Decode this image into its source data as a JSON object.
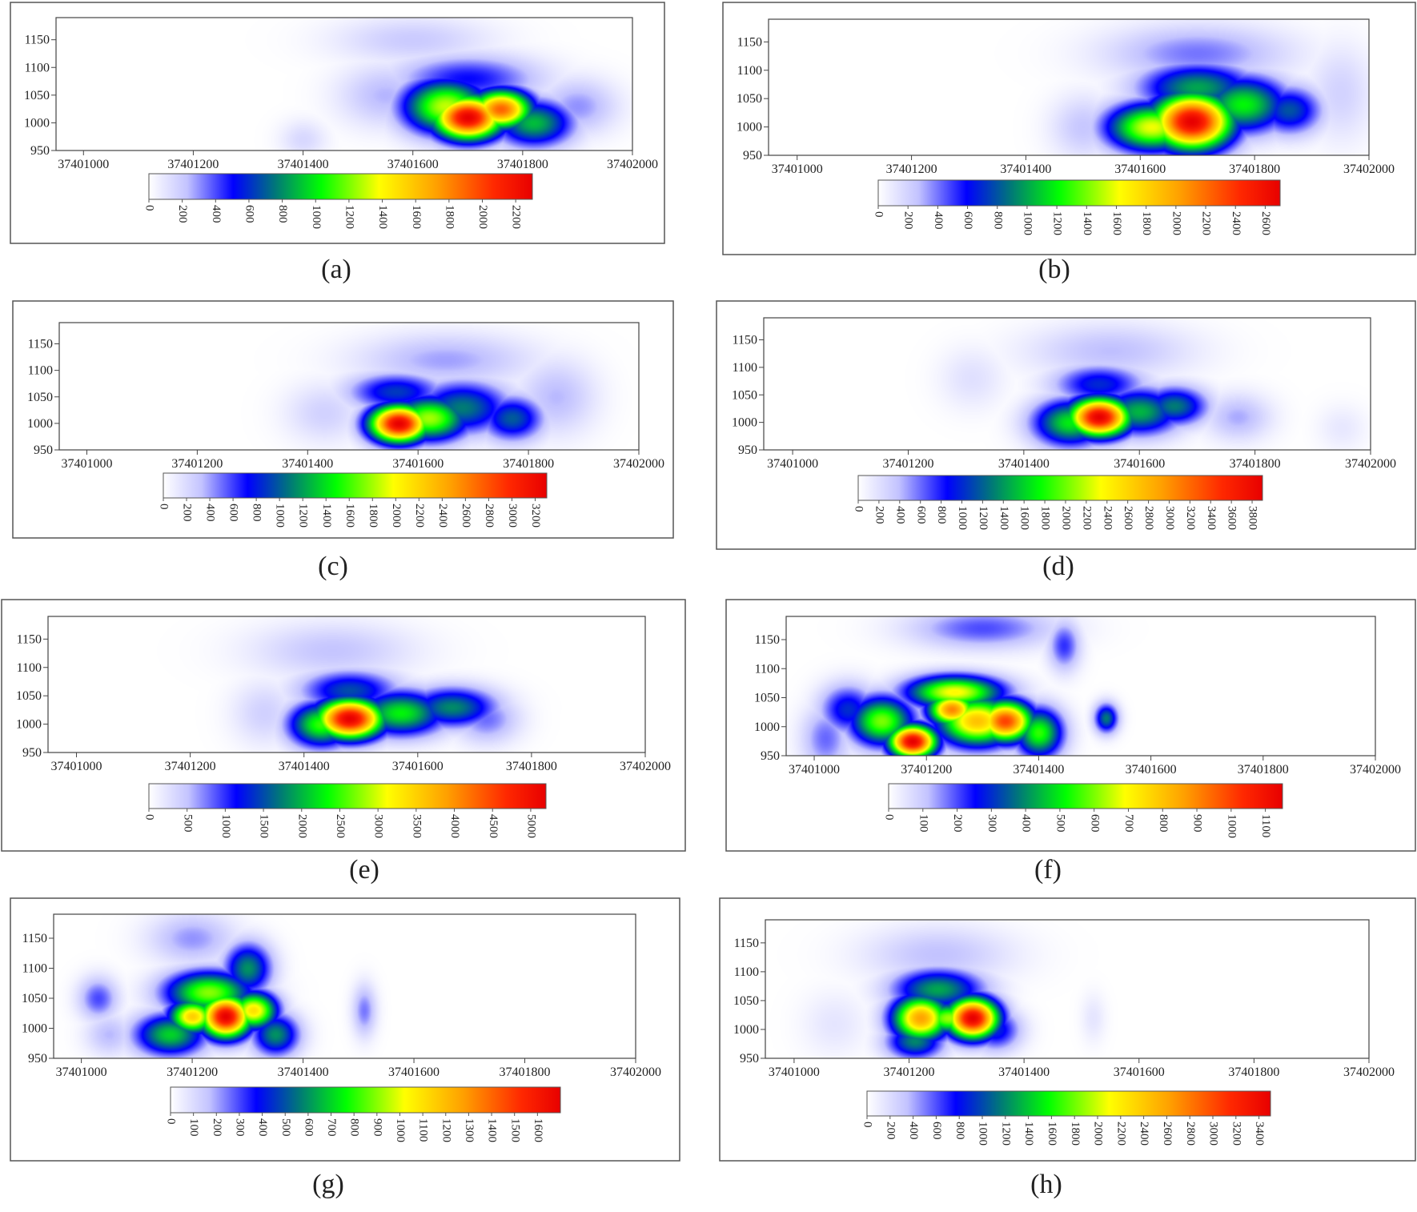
{
  "chart_data": [
    {
      "type": "heatmap",
      "panel_label": "(a)",
      "x_ticks": [
        "37401000",
        "37401200",
        "37401400",
        "37401600",
        "37401800",
        "37402000"
      ],
      "y_ticks": [
        "950",
        "1000",
        "1050",
        "1100",
        "1150"
      ],
      "xlim": [
        37400950,
        37402000
      ],
      "ylim": [
        950,
        1190
      ],
      "colorbar_ticks": [
        "0",
        "200",
        "400",
        "600",
        "800",
        "1000",
        "1200",
        "1400",
        "1600",
        "1800",
        "2000",
        "2200"
      ],
      "colorbar_range": [
        0,
        2300
      ],
      "hotspots": [
        {
          "x": 37401700,
          "y": 1010,
          "value": 2300,
          "sx": 45,
          "sy": 28
        },
        {
          "x": 37401760,
          "y": 1025,
          "value": 1900,
          "sx": 40,
          "sy": 25
        },
        {
          "x": 37401660,
          "y": 1030,
          "value": 1300,
          "sx": 55,
          "sy": 35
        },
        {
          "x": 37401820,
          "y": 1000,
          "value": 900,
          "sx": 50,
          "sy": 30
        },
        {
          "x": 37401700,
          "y": 1080,
          "value": 500,
          "sx": 90,
          "sy": 30
        },
        {
          "x": 37401900,
          "y": 1030,
          "value": 300,
          "sx": 50,
          "sy": 35
        },
        {
          "x": 37401550,
          "y": 1050,
          "value": 250,
          "sx": 60,
          "sy": 40
        },
        {
          "x": 37401400,
          "y": 970,
          "value": 150,
          "sx": 30,
          "sy": 25
        },
        {
          "x": 37401600,
          "y": 1150,
          "value": 200,
          "sx": 100,
          "sy": 30
        }
      ]
    },
    {
      "type": "heatmap",
      "panel_label": "(b)",
      "x_ticks": [
        "37401000",
        "37401200",
        "37401400",
        "37401600",
        "37401800",
        "37402000"
      ],
      "y_ticks": [
        "950",
        "1000",
        "1050",
        "1100",
        "1150"
      ],
      "xlim": [
        37400950,
        37402000
      ],
      "ylim": [
        950,
        1190
      ],
      "colorbar_ticks": [
        "0",
        "200",
        "400",
        "600",
        "800",
        "1000",
        "1200",
        "1400",
        "1600",
        "1800",
        "2000",
        "2200",
        "2400",
        "2600"
      ],
      "colorbar_range": [
        0,
        2700
      ],
      "hotspots": [
        {
          "x": 37401690,
          "y": 1010,
          "value": 2700,
          "sx": 50,
          "sy": 35
        },
        {
          "x": 37401620,
          "y": 1000,
          "value": 1600,
          "sx": 55,
          "sy": 30
        },
        {
          "x": 37401780,
          "y": 1040,
          "value": 1200,
          "sx": 55,
          "sy": 35
        },
        {
          "x": 37401700,
          "y": 1070,
          "value": 1000,
          "sx": 70,
          "sy": 30
        },
        {
          "x": 37401860,
          "y": 1030,
          "value": 800,
          "sx": 40,
          "sy": 30
        },
        {
          "x": 37401700,
          "y": 1130,
          "value": 400,
          "sx": 110,
          "sy": 35
        },
        {
          "x": 37401500,
          "y": 1000,
          "value": 250,
          "sx": 40,
          "sy": 40
        },
        {
          "x": 37401950,
          "y": 1060,
          "value": 200,
          "sx": 40,
          "sy": 60
        }
      ]
    },
    {
      "type": "heatmap",
      "panel_label": "(c)",
      "x_ticks": [
        "37401000",
        "37401200",
        "37401400",
        "37401600",
        "37401800",
        "37402000"
      ],
      "y_ticks": [
        "950",
        "1000",
        "1050",
        "1100",
        "1150"
      ],
      "xlim": [
        37400950,
        37402000
      ],
      "ylim": [
        950,
        1190
      ],
      "colorbar_ticks": [
        "0",
        "200",
        "400",
        "600",
        "800",
        "1000",
        "1200",
        "1400",
        "1600",
        "1800",
        "2000",
        "2200",
        "2400",
        "2600",
        "2800",
        "3000",
        "3200"
      ],
      "colorbar_range": [
        0,
        3300
      ],
      "hotspots": [
        {
          "x": 37401565,
          "y": 1000,
          "value": 3300,
          "sx": 38,
          "sy": 25
        },
        {
          "x": 37401620,
          "y": 1010,
          "value": 1800,
          "sx": 50,
          "sy": 30
        },
        {
          "x": 37401680,
          "y": 1030,
          "value": 1100,
          "sx": 60,
          "sy": 35
        },
        {
          "x": 37401770,
          "y": 1010,
          "value": 1000,
          "sx": 40,
          "sy": 30
        },
        {
          "x": 37401560,
          "y": 1060,
          "value": 900,
          "sx": 60,
          "sy": 25
        },
        {
          "x": 37401850,
          "y": 1050,
          "value": 350,
          "sx": 50,
          "sy": 50
        },
        {
          "x": 37401650,
          "y": 1120,
          "value": 400,
          "sx": 110,
          "sy": 35
        },
        {
          "x": 37401430,
          "y": 1020,
          "value": 250,
          "sx": 50,
          "sy": 40
        }
      ]
    },
    {
      "type": "heatmap",
      "panel_label": "(d)",
      "x_ticks": [
        "37401000",
        "37401200",
        "37401400",
        "37401600",
        "37401800",
        "37402000"
      ],
      "y_ticks": [
        "950",
        "1000",
        "1050",
        "1100",
        "1150"
      ],
      "xlim": [
        37400950,
        37402000
      ],
      "ylim": [
        950,
        1190
      ],
      "colorbar_ticks": [
        "0",
        "200",
        "400",
        "600",
        "800",
        "1000",
        "1200",
        "1400",
        "1600",
        "1800",
        "2000",
        "2200",
        "2400",
        "2600",
        "2800",
        "3000",
        "3200",
        "3400",
        "3600",
        "3800"
      ],
      "colorbar_range": [
        0,
        3900
      ],
      "hotspots": [
        {
          "x": 37401530,
          "y": 1010,
          "value": 3900,
          "sx": 38,
          "sy": 25
        },
        {
          "x": 37401480,
          "y": 1000,
          "value": 1700,
          "sx": 45,
          "sy": 30
        },
        {
          "x": 37401600,
          "y": 1020,
          "value": 1500,
          "sx": 50,
          "sy": 30
        },
        {
          "x": 37401660,
          "y": 1030,
          "value": 1300,
          "sx": 40,
          "sy": 25
        },
        {
          "x": 37401530,
          "y": 1070,
          "value": 1000,
          "sx": 55,
          "sy": 25
        },
        {
          "x": 37401770,
          "y": 1010,
          "value": 450,
          "sx": 40,
          "sy": 30
        },
        {
          "x": 37401550,
          "y": 1130,
          "value": 400,
          "sx": 100,
          "sy": 35
        },
        {
          "x": 37401310,
          "y": 1080,
          "value": 200,
          "sx": 40,
          "sy": 40
        },
        {
          "x": 37401950,
          "y": 990,
          "value": 150,
          "sx": 30,
          "sy": 30
        }
      ]
    },
    {
      "type": "heatmap",
      "panel_label": "(e)",
      "x_ticks": [
        "37401000",
        "37401200",
        "37401400",
        "37401600",
        "37401800",
        "37402000"
      ],
      "y_ticks": [
        "950",
        "1000",
        "1050",
        "1100",
        "1150"
      ],
      "xlim": [
        37400950,
        37402000
      ],
      "ylim": [
        950,
        1190
      ],
      "colorbar_ticks": [
        "0",
        "500",
        "1000",
        "1500",
        "2000",
        "2500",
        "3000",
        "3500",
        "4000",
        "4500",
        "5000"
      ],
      "colorbar_range": [
        0,
        5200
      ],
      "hotspots": [
        {
          "x": 37401480,
          "y": 1010,
          "value": 5200,
          "sx": 42,
          "sy": 25
        },
        {
          "x": 37401430,
          "y": 1000,
          "value": 2500,
          "sx": 40,
          "sy": 28
        },
        {
          "x": 37401570,
          "y": 1020,
          "value": 2300,
          "sx": 55,
          "sy": 28
        },
        {
          "x": 37401660,
          "y": 1030,
          "value": 1800,
          "sx": 55,
          "sy": 25
        },
        {
          "x": 37401480,
          "y": 1060,
          "value": 1500,
          "sx": 60,
          "sy": 25
        },
        {
          "x": 37401450,
          "y": 1130,
          "value": 500,
          "sx": 100,
          "sy": 35
        },
        {
          "x": 37401330,
          "y": 1020,
          "value": 400,
          "sx": 40,
          "sy": 40
        },
        {
          "x": 37401720,
          "y": 1010,
          "value": 800,
          "sx": 40,
          "sy": 30
        }
      ]
    },
    {
      "type": "heatmap",
      "panel_label": "(f)",
      "x_ticks": [
        "37401000",
        "37401200",
        "37401400",
        "37401600",
        "37401800",
        "37402000"
      ],
      "y_ticks": [
        "950",
        "1000",
        "1050",
        "1100",
        "1150"
      ],
      "xlim": [
        37400950,
        37402000
      ],
      "ylim": [
        950,
        1190
      ],
      "colorbar_ticks": [
        "0",
        "100",
        "200",
        "300",
        "400",
        "500",
        "600",
        "700",
        "800",
        "900",
        "1000",
        "1100"
      ],
      "colorbar_range": [
        0,
        1150
      ],
      "hotspots": [
        {
          "x": 37401175,
          "y": 975,
          "value": 1150,
          "sx": 30,
          "sy": 20
        },
        {
          "x": 37401340,
          "y": 1010,
          "value": 1000,
          "sx": 35,
          "sy": 25
        },
        {
          "x": 37401245,
          "y": 1030,
          "value": 900,
          "sx": 30,
          "sy": 20
        },
        {
          "x": 37401290,
          "y": 1010,
          "value": 800,
          "sx": 50,
          "sy": 30
        },
        {
          "x": 37401120,
          "y": 1010,
          "value": 600,
          "sx": 40,
          "sy": 30
        },
        {
          "x": 37401250,
          "y": 1060,
          "value": 700,
          "sx": 60,
          "sy": 20
        },
        {
          "x": 37401060,
          "y": 1030,
          "value": 300,
          "sx": 35,
          "sy": 30
        },
        {
          "x": 37401400,
          "y": 990,
          "value": 550,
          "sx": 30,
          "sy": 30
        },
        {
          "x": 37401520,
          "y": 1015,
          "value": 380,
          "sx": 15,
          "sy": 18
        },
        {
          "x": 37401445,
          "y": 1140,
          "value": 220,
          "sx": 20,
          "sy": 30
        },
        {
          "x": 37401300,
          "y": 1170,
          "value": 200,
          "sx": 90,
          "sy": 25
        },
        {
          "x": 37401020,
          "y": 980,
          "value": 180,
          "sx": 30,
          "sy": 40
        }
      ]
    },
    {
      "type": "heatmap",
      "panel_label": "(g)",
      "x_ticks": [
        "37401000",
        "37401200",
        "37401400",
        "37401600",
        "37401800",
        "37402000"
      ],
      "y_ticks": [
        "950",
        "1000",
        "1050",
        "1100",
        "1150"
      ],
      "xlim": [
        37400950,
        37402000
      ],
      "ylim": [
        950,
        1190
      ],
      "colorbar_ticks": [
        "0",
        "100",
        "200",
        "300",
        "400",
        "500",
        "600",
        "700",
        "800",
        "900",
        "1000",
        "1100",
        "1200",
        "1300",
        "1400",
        "1500",
        "1600"
      ],
      "colorbar_range": [
        0,
        1700
      ],
      "hotspots": [
        {
          "x": 37401260,
          "y": 1020,
          "value": 1700,
          "sx": 32,
          "sy": 25
        },
        {
          "x": 37401200,
          "y": 1020,
          "value": 1150,
          "sx": 30,
          "sy": 20
        },
        {
          "x": 37401310,
          "y": 1030,
          "value": 1100,
          "sx": 30,
          "sy": 22
        },
        {
          "x": 37401230,
          "y": 1060,
          "value": 900,
          "sx": 55,
          "sy": 25
        },
        {
          "x": 37401300,
          "y": 1100,
          "value": 600,
          "sx": 30,
          "sy": 30
        },
        {
          "x": 37401160,
          "y": 990,
          "value": 700,
          "sx": 45,
          "sy": 25
        },
        {
          "x": 37401350,
          "y": 990,
          "value": 600,
          "sx": 30,
          "sy": 25
        },
        {
          "x": 37401030,
          "y": 1050,
          "value": 300,
          "sx": 25,
          "sy": 25
        },
        {
          "x": 37401050,
          "y": 990,
          "value": 180,
          "sx": 30,
          "sy": 25
        },
        {
          "x": 37401510,
          "y": 1030,
          "value": 250,
          "sx": 15,
          "sy": 30
        },
        {
          "x": 37401200,
          "y": 1150,
          "value": 220,
          "sx": 55,
          "sy": 30
        }
      ]
    },
    {
      "type": "heatmap",
      "panel_label": "(h)",
      "x_ticks": [
        "37401000",
        "37401200",
        "37401400",
        "37401600",
        "37401800",
        "37402000"
      ],
      "y_ticks": [
        "950",
        "1000",
        "1050",
        "1100",
        "1150"
      ],
      "xlim": [
        37400950,
        37402000
      ],
      "ylim": [
        950,
        1190
      ],
      "colorbar_ticks": [
        "0",
        "200",
        "400",
        "600",
        "800",
        "1000",
        "1200",
        "1400",
        "1600",
        "1800",
        "2000",
        "2200",
        "2400",
        "2600",
        "2800",
        "3000",
        "3200",
        "3400"
      ],
      "colorbar_range": [
        0,
        3500
      ],
      "hotspots": [
        {
          "x": 37401310,
          "y": 1020,
          "value": 3500,
          "sx": 32,
          "sy": 25
        },
        {
          "x": 37401220,
          "y": 1020,
          "value": 2600,
          "sx": 35,
          "sy": 28
        },
        {
          "x": 37401270,
          "y": 1020,
          "value": 1900,
          "sx": 40,
          "sy": 20
        },
        {
          "x": 37401250,
          "y": 1070,
          "value": 1300,
          "sx": 55,
          "sy": 25
        },
        {
          "x": 37401210,
          "y": 980,
          "value": 1200,
          "sx": 35,
          "sy": 22
        },
        {
          "x": 37401350,
          "y": 1000,
          "value": 900,
          "sx": 30,
          "sy": 25
        },
        {
          "x": 37401250,
          "y": 1130,
          "value": 350,
          "sx": 90,
          "sy": 35
        },
        {
          "x": 37401520,
          "y": 1020,
          "value": 150,
          "sx": 15,
          "sy": 30
        },
        {
          "x": 37401070,
          "y": 1010,
          "value": 150,
          "sx": 40,
          "sy": 40
        }
      ]
    }
  ]
}
